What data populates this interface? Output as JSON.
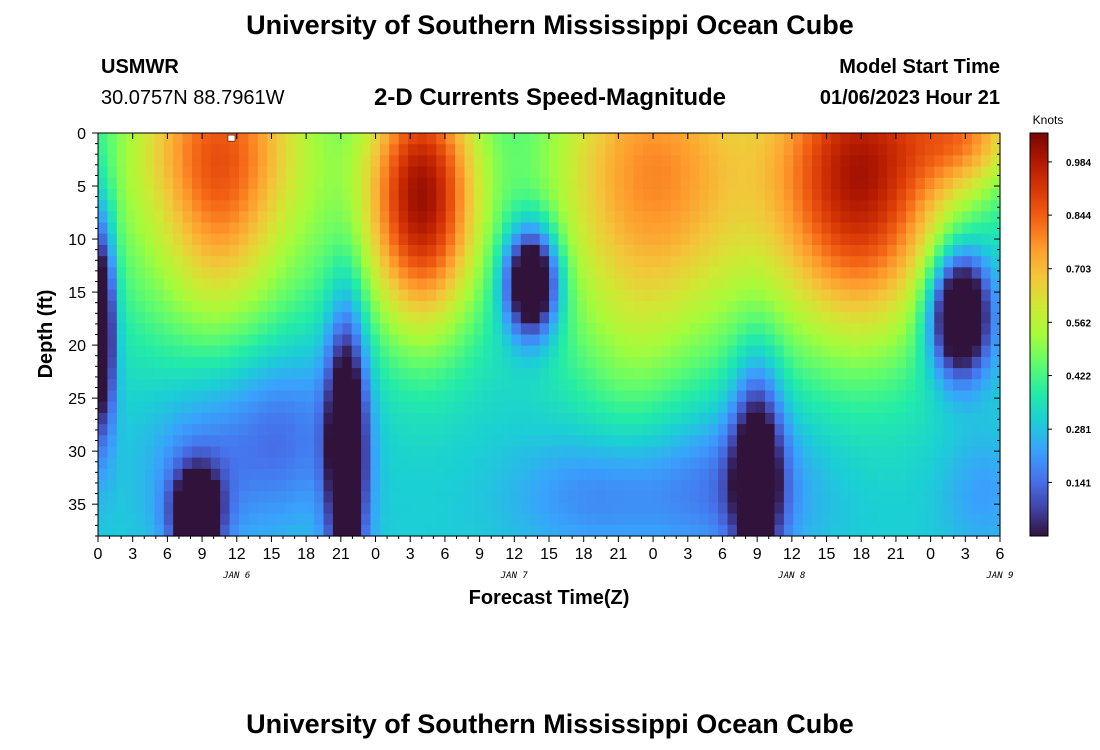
{
  "header": {
    "title": "University of Southern Mississippi Ocean Cube",
    "station_id": "USMWR",
    "station_coords": "30.0757N  88.7961W",
    "plot_title": "2-D Currents Speed-Magnitude",
    "start_label": "Model Start Time",
    "start_value": "01/06/2023 Hour 21"
  },
  "footer": {
    "title": "University of Southern Mississippi Ocean Cube"
  },
  "colors": {
    "scale": [
      "#30123b",
      "#4145ab",
      "#4675ed",
      "#39a2fc",
      "#1bcfd4",
      "#24eca6",
      "#61fc6c",
      "#a4fc3b",
      "#d1e834",
      "#f3c63a",
      "#fe9b2d",
      "#f36315",
      "#d93806",
      "#b11901",
      "#7a0402"
    ]
  },
  "chart_data": {
    "type": "heatmap",
    "title": "2-D Currents Speed-Magnitude",
    "xlabel": "Forecast Time(Z)",
    "ylabel": "Depth (ft)",
    "x_unit": "hours since 01/06 00Z",
    "xlim": [
      0,
      78
    ],
    "ylim": [
      0,
      38
    ],
    "y_inverted": true,
    "yticks": [
      0,
      5,
      10,
      15,
      20,
      25,
      30,
      35
    ],
    "xticks": [
      {
        "h": 0,
        "label": "0"
      },
      {
        "h": 3,
        "label": "3"
      },
      {
        "h": 6,
        "label": "6"
      },
      {
        "h": 9,
        "label": "9"
      },
      {
        "h": 12,
        "label": "12"
      },
      {
        "h": 15,
        "label": "15"
      },
      {
        "h": 18,
        "label": "18"
      },
      {
        "h": 21,
        "label": "21"
      },
      {
        "h": 24,
        "label": "0"
      },
      {
        "h": 27,
        "label": "3"
      },
      {
        "h": 30,
        "label": "6"
      },
      {
        "h": 33,
        "label": "9"
      },
      {
        "h": 36,
        "label": "12"
      },
      {
        "h": 39,
        "label": "15"
      },
      {
        "h": 42,
        "label": "18"
      },
      {
        "h": 45,
        "label": "21"
      },
      {
        "h": 48,
        "label": "0"
      },
      {
        "h": 51,
        "label": "3"
      },
      {
        "h": 54,
        "label": "6"
      },
      {
        "h": 57,
        "label": "9"
      },
      {
        "h": 60,
        "label": "12"
      },
      {
        "h": 63,
        "label": "15"
      },
      {
        "h": 66,
        "label": "18"
      },
      {
        "h": 69,
        "label": "21"
      },
      {
        "h": 72,
        "label": "0"
      },
      {
        "h": 75,
        "label": "3"
      },
      {
        "h": 78,
        "label": "6"
      }
    ],
    "date_labels": [
      {
        "h": 12,
        "label": "JAN 6"
      },
      {
        "h": 36,
        "label": "JAN 7"
      },
      {
        "h": 60,
        "label": "JAN 8"
      },
      {
        "h": 78,
        "label": "JAN 9"
      }
    ],
    "colorbar": {
      "title": "Knots",
      "min": 0.0,
      "max": 1.06,
      "ticks": [
        0.141,
        0.281,
        0.422,
        0.562,
        0.703,
        0.844,
        0.984
      ]
    },
    "marker": {
      "h": 11.5,
      "depth": 0.2
    },
    "cores": [
      {
        "h": 10.5,
        "d": 4,
        "sh": 6.0,
        "sd": 10.0,
        "v": 0.93
      },
      {
        "h": 6.5,
        "d": 8,
        "sh": 3.0,
        "sd": 6.0,
        "v": 0.2
      },
      {
        "h": 14.5,
        "d": 8,
        "sh": 3.0,
        "sd": 6.0,
        "v": 0.2
      },
      {
        "h": 28.0,
        "d": 6,
        "sh": 3.5,
        "sd": 9.0,
        "v": 1.0
      },
      {
        "h": 48.0,
        "d": 4,
        "sh": 7.0,
        "sd": 12.0,
        "v": 0.78
      },
      {
        "h": 46.0,
        "d": 22,
        "sh": 3.0,
        "sd": 6.0,
        "v": 0.35
      },
      {
        "h": 66.0,
        "d": 4,
        "sh": 5.5,
        "sd": 11.0,
        "v": 0.98
      },
      {
        "h": 75.5,
        "d": 0,
        "sh": 3.5,
        "sd": 4.0,
        "v": 0.65
      },
      {
        "h": 16.0,
        "d": 28,
        "sh": 3.5,
        "sd": 6.0,
        "v": 0.14
      },
      {
        "h": 9.0,
        "d": 31,
        "sh": 3.5,
        "sd": 6.0,
        "v": 0.18
      },
      {
        "h": 43.0,
        "d": 34,
        "sh": 5.0,
        "sd": 4.0,
        "v": 0.18
      },
      {
        "h": 55.0,
        "d": 33,
        "sh": 5.0,
        "sd": 5.0,
        "v": 0.14
      },
      {
        "h": 76.5,
        "d": 34,
        "sh": 2.5,
        "sd": 4.0,
        "v": 0.22
      },
      {
        "h": 37.5,
        "d": 14,
        "sh": 1.6,
        "sd": 3.5,
        "v": -0.35
      },
      {
        "h": 74.5,
        "d": 17,
        "sh": 1.8,
        "sd": 4.0,
        "v": -0.35
      },
      {
        "h": 21.5,
        "d": 30,
        "sh": 1.2,
        "sd": 9.0,
        "v": -0.25
      },
      {
        "h": 8.5,
        "d": 36,
        "sh": 1.5,
        "sd": 3.0,
        "v": -0.2
      },
      {
        "h": 0.3,
        "d": 18,
        "sh": 0.8,
        "sd": 7.0,
        "v": -0.25
      },
      {
        "h": 57.0,
        "d": 32,
        "sh": 1.5,
        "sd": 7.0,
        "v": -0.12
      }
    ]
  }
}
